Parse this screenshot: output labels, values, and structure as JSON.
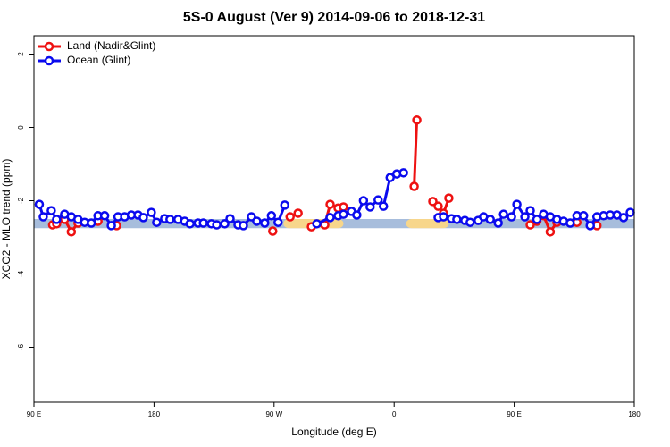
{
  "chart_data": {
    "type": "line",
    "title": "5S-0 August (Ver 9)   2014-09-06 to 2018-12-31",
    "x_label": "Longitude (deg E)",
    "y_label": "XCO2 - MLO trend (ppm)",
    "xlim": [
      90,
      540
    ],
    "xticks": [
      {
        "value": 90,
        "label": "90 E"
      },
      {
        "value": 180,
        "label": "180"
      },
      {
        "value": 270,
        "label": "90 W"
      },
      {
        "value": 360,
        "label": "0"
      },
      {
        "value": 450,
        "label": "90 E"
      },
      {
        "value": 540,
        "label": "180"
      }
    ],
    "ylim": [
      -7.5,
      2.5
    ],
    "yticks": [
      2,
      0,
      -2,
      -4,
      -6
    ],
    "legend": "upper left",
    "band": {
      "range": [
        -2.75,
        -2.5
      ],
      "color": "#a7bddc"
    },
    "highlights": [
      {
        "xlim": [
          277,
          322
        ],
        "color": "#f7d68b"
      },
      {
        "xlim": [
          369,
          401
        ],
        "color": "#f7d68b"
      }
    ],
    "series": [
      {
        "name": "Land (Nadir&Glint)",
        "color": "#ee1111",
        "x": [
          104,
          107,
          113,
          118,
          123,
          null,
          138,
          null,
          152,
          null,
          269,
          null,
          282,
          288,
          null,
          298,
          308,
          312,
          318,
          322,
          null,
          375,
          377,
          null,
          389,
          393,
          397,
          401,
          null,
          462,
          467,
          472,
          477,
          482,
          null,
          497,
          null,
          512
        ],
        "values": [
          -2.66,
          -2.63,
          -2.51,
          -2.85,
          -2.61,
          null,
          -2.56,
          null,
          -2.68,
          null,
          -2.83,
          null,
          -2.44,
          -2.34,
          null,
          -2.71,
          -2.66,
          -2.1,
          -2.2,
          -2.17,
          null,
          -1.61,
          0.2,
          null,
          -2.02,
          -2.15,
          -2.34,
          -1.93,
          null,
          -2.66,
          -2.56,
          -2.41,
          -2.85,
          -2.59,
          null,
          -2.59,
          null,
          -2.68
        ]
      },
      {
        "name": "Ocean (Glint)",
        "color": "#0a0aee",
        "x": [
          94,
          97,
          103,
          107,
          113,
          118,
          123,
          128,
          133,
          138,
          143,
          148,
          153,
          158,
          163,
          168,
          172,
          178,
          182,
          188,
          192,
          198,
          203,
          207,
          213,
          217,
          223,
          227,
          233,
          237,
          243,
          247,
          253,
          257,
          263,
          268,
          273,
          278,
          null,
          302,
          312,
          318,
          322,
          328,
          332,
          337,
          342,
          348,
          352,
          357,
          362,
          367,
          null,
          393,
          397,
          403,
          407,
          413,
          417,
          423,
          427,
          432,
          438,
          442,
          448,
          452,
          458,
          462,
          467,
          472,
          477,
          482,
          487,
          492,
          497,
          502,
          507,
          512,
          517,
          522,
          527,
          532,
          537
        ],
        "values": [
          -2.1,
          -2.44,
          -2.27,
          -2.51,
          -2.37,
          -2.44,
          -2.51,
          -2.59,
          -2.61,
          -2.41,
          -2.41,
          -2.68,
          -2.44,
          -2.44,
          -2.39,
          -2.39,
          -2.46,
          -2.32,
          -2.59,
          -2.49,
          -2.51,
          -2.51,
          -2.56,
          -2.63,
          -2.61,
          -2.61,
          -2.63,
          -2.66,
          -2.63,
          -2.49,
          -2.66,
          -2.68,
          -2.44,
          -2.56,
          -2.61,
          -2.41,
          -2.59,
          -2.12,
          null,
          -2.63,
          -2.46,
          -2.41,
          -2.37,
          -2.29,
          -2.39,
          -2.0,
          -2.17,
          -1.98,
          -2.15,
          -1.37,
          -1.27,
          -1.24,
          null,
          -2.46,
          -2.44,
          -2.49,
          -2.51,
          -2.54,
          -2.59,
          -2.54,
          -2.44,
          -2.51,
          -2.61,
          -2.37,
          -2.44,
          -2.1,
          -2.44,
          -2.27,
          -2.51,
          -2.37,
          -2.44,
          -2.51,
          -2.56,
          -2.61,
          -2.41,
          -2.41,
          -2.68,
          -2.44,
          -2.41,
          -2.39,
          -2.39,
          -2.46,
          -2.32
        ]
      }
    ]
  }
}
